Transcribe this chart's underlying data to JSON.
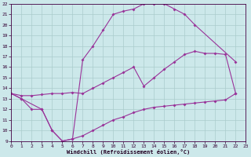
{
  "xlabel": "Windchill (Refroidissement éolien,°C)",
  "bg_color": "#cce8ea",
  "grid_color": "#aacccc",
  "line_color": "#993399",
  "markersize": 2,
  "linewidth": 0.8,
  "xlim": [
    0,
    23
  ],
  "ylim": [
    9,
    22
  ],
  "xticks": [
    0,
    1,
    2,
    3,
    4,
    5,
    6,
    7,
    8,
    9,
    10,
    11,
    12,
    13,
    14,
    15,
    16,
    17,
    18,
    19,
    20,
    21,
    22,
    23
  ],
  "yticks": [
    9,
    10,
    11,
    12,
    13,
    14,
    15,
    16,
    17,
    18,
    19,
    20,
    21,
    22
  ],
  "line1_x": [
    0,
    1,
    3,
    4,
    5,
    6,
    7,
    8,
    9,
    10,
    11,
    12,
    13,
    14,
    15,
    16,
    17,
    18,
    22
  ],
  "line1_y": [
    13.5,
    13.0,
    12.0,
    10.0,
    9.0,
    9.2,
    16.7,
    18.0,
    19.5,
    21.0,
    21.3,
    21.5,
    22.0,
    22.0,
    22.0,
    21.5,
    21.0,
    20.0,
    16.5
  ],
  "line2_x": [
    0,
    1,
    2,
    3,
    4,
    5,
    6,
    7,
    8,
    9,
    10,
    11,
    12,
    13,
    14,
    15,
    16,
    17,
    18,
    19,
    20,
    21,
    22
  ],
  "line2_y": [
    13.5,
    13.0,
    12.0,
    12.0,
    10.0,
    9.0,
    9.2,
    9.5,
    10.0,
    10.5,
    11.0,
    11.3,
    11.7,
    12.0,
    12.2,
    12.3,
    12.4,
    12.5,
    12.6,
    12.7,
    12.8,
    12.9,
    13.5
  ],
  "line3_x": [
    0,
    1,
    2,
    3,
    4,
    5,
    6,
    7,
    8,
    9,
    10,
    11,
    12,
    13,
    14,
    15,
    16,
    17,
    18,
    19,
    20,
    21,
    22
  ],
  "line3_y": [
    13.5,
    13.3,
    13.3,
    13.4,
    13.5,
    13.5,
    13.6,
    13.5,
    14.0,
    14.5,
    15.0,
    15.5,
    16.0,
    14.2,
    15.0,
    15.8,
    16.5,
    17.2,
    17.5,
    17.3,
    17.3,
    17.2,
    13.5
  ]
}
